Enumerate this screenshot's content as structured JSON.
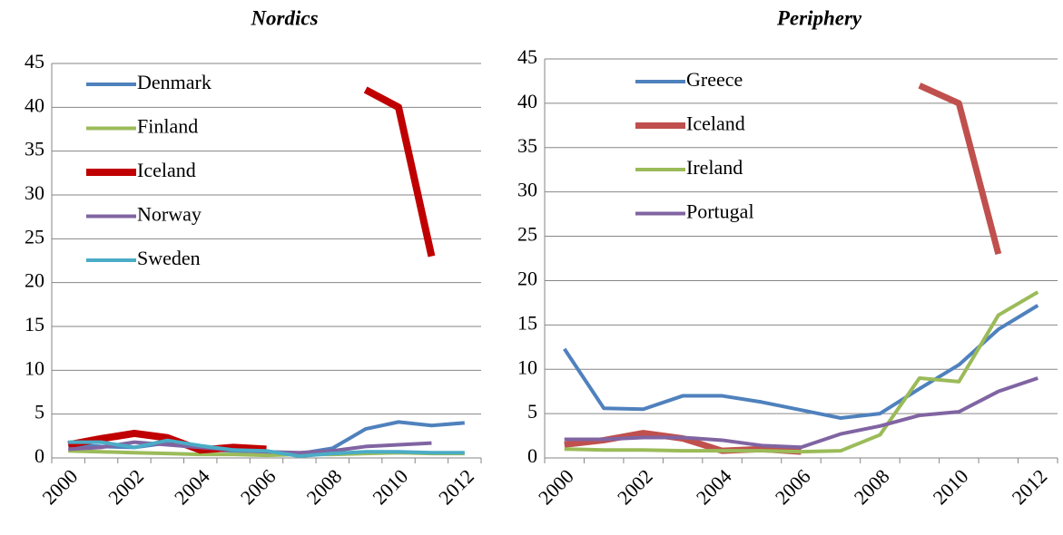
{
  "chart_data": [
    {
      "type": "line",
      "title": "Nordics",
      "categories": [
        "2000",
        null,
        "2002",
        null,
        "2004",
        null,
        "2006",
        null,
        "2008",
        null,
        "2010",
        null,
        "2012"
      ],
      "ylim": [
        0,
        45
      ],
      "yticks": [
        0,
        5,
        10,
        15,
        20,
        25,
        30,
        35,
        40,
        45
      ],
      "grid": true,
      "legend": "upper left",
      "series": [
        {
          "name": "Denmark",
          "color": "#4f81bd",
          "line_width": 4,
          "values": [
            1.5,
            1.3,
            1.2,
            1.7,
            1.0,
            0.8,
            0.7,
            0.5,
            1.1,
            3.3,
            4.1,
            3.7,
            4.0
          ]
        },
        {
          "name": "Finland",
          "color": "#9bbb59",
          "line_width": 4,
          "values": [
            0.8,
            0.7,
            0.6,
            0.5,
            0.4,
            0.4,
            0.3,
            0.4,
            0.4,
            0.5,
            0.6,
            0.5,
            0.5
          ]
        },
        {
          "name": "Iceland",
          "color": "#c00000",
          "line_width": 8,
          "values": [
            1.5,
            2.2,
            2.8,
            2.3,
            0.9,
            1.2,
            1.0,
            null,
            null,
            42,
            40,
            23,
            null
          ]
        },
        {
          "name": "Norway",
          "color": "#8064a2",
          "line_width": 4,
          "values": [
            1.0,
            1.2,
            1.8,
            1.5,
            1.2,
            0.9,
            0.7,
            0.6,
            0.8,
            1.3,
            1.5,
            1.7,
            null
          ]
        },
        {
          "name": "Sweden",
          "color": "#4bacc6",
          "line_width": 4,
          "values": [
            1.8,
            1.8,
            1.2,
            2.0,
            1.4,
            0.9,
            0.8,
            0.2,
            0.5,
            0.7,
            0.7,
            0.6,
            0.6
          ]
        }
      ]
    },
    {
      "type": "line",
      "title": "Periphery",
      "categories": [
        "2000",
        null,
        "2002",
        null,
        "2004",
        null,
        "2006",
        null,
        "2008",
        null,
        "2010",
        null,
        "2012"
      ],
      "ylim": [
        0,
        45
      ],
      "yticks": [
        0,
        5,
        10,
        15,
        20,
        25,
        30,
        35,
        40,
        45
      ],
      "grid": true,
      "legend": "upper left",
      "series": [
        {
          "name": "Greece",
          "color": "#4f81bd",
          "line_width": 4,
          "values": [
            12.3,
            5.6,
            5.5,
            7.0,
            7.0,
            6.3,
            5.4,
            4.5,
            5.0,
            7.8,
            10.5,
            14.5,
            17.2
          ]
        },
        {
          "name": "Iceland",
          "color": "#c0504d",
          "line_width": 7,
          "values": [
            1.5,
            2.0,
            2.8,
            2.2,
            0.8,
            1.0,
            0.7,
            null,
            null,
            42,
            40,
            23,
            null
          ]
        },
        {
          "name": "Ireland",
          "color": "#9bbb59",
          "line_width": 4,
          "values": [
            1.0,
            0.9,
            0.9,
            0.8,
            0.8,
            0.8,
            0.7,
            0.8,
            2.6,
            9.0,
            8.6,
            16.1,
            18.7
          ]
        },
        {
          "name": "Portugal",
          "color": "#8064a2",
          "line_width": 4,
          "values": [
            2.1,
            2.1,
            2.3,
            2.3,
            2.0,
            1.4,
            1.2,
            2.7,
            3.6,
            4.8,
            5.2,
            7.5,
            9.0
          ]
        }
      ]
    }
  ]
}
